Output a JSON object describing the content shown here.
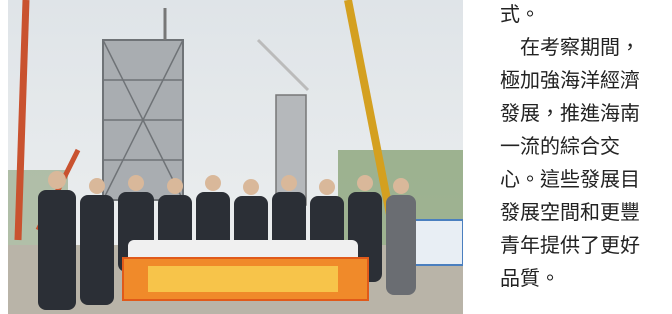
{
  "article": {
    "lines": [
      "式。",
      "　在考察期間，",
      "極加強海洋經濟",
      "發展，推進海南",
      "一流的綜合交",
      "心。這些發展目",
      "發展空間和更豐",
      "青年提供了更好",
      "品質。"
    ]
  }
}
